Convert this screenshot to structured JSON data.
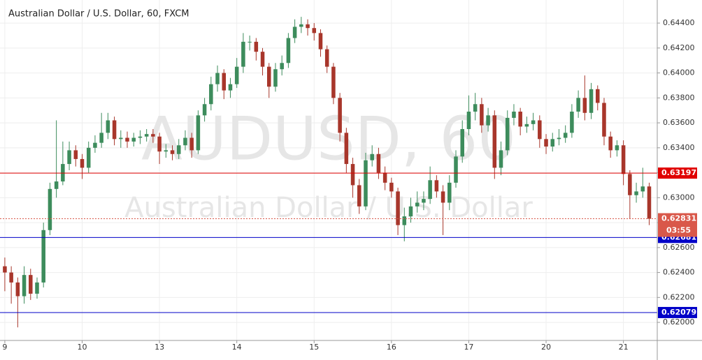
{
  "chart_data": {
    "type": "candlestick",
    "title": "Australian Dollar / U.S. Dollar, 60, FXCM",
    "watermark": [
      "AUDUSD, 60",
      "Australian Dollar / U.S. Dollar"
    ],
    "x": [
      0,
      2,
      4,
      6,
      8,
      10,
      12,
      14,
      16,
      18,
      20,
      22,
      24,
      26,
      28,
      30,
      32,
      34,
      36,
      38,
      40,
      42,
      44,
      46,
      48,
      50,
      52,
      54,
      56,
      58,
      60,
      62,
      64,
      66,
      68,
      70,
      72,
      74,
      76,
      78,
      80,
      82,
      84,
      86,
      88,
      90,
      92,
      94,
      96,
      98,
      100,
      102,
      104,
      106,
      108,
      110,
      112,
      114,
      116,
      118,
      120,
      122,
      124,
      126,
      128,
      130,
      132,
      134,
      136,
      138,
      140,
      142,
      144,
      146,
      148,
      150,
      152,
      154,
      156,
      158,
      160,
      162,
      164,
      166,
      168,
      170,
      172,
      174,
      176,
      178,
      180,
      182,
      184,
      186,
      188,
      190,
      192,
      194,
      196,
      198,
      200
    ],
    "open": [
      0.6245,
      0.624,
      0.6232,
      0.6221,
      0.6238,
      0.6223,
      0.6232,
      0.6274,
      0.6307,
      0.6313,
      0.6327,
      0.6338,
      0.6331,
      0.6324,
      0.634,
      0.6344,
      0.6352,
      0.6362,
      0.6347,
      0.6348,
      0.6345,
      0.6348,
      0.6349,
      0.6351,
      0.6349,
      0.6337,
      0.6338,
      0.6335,
      0.6342,
      0.6348,
      0.6338,
      0.6366,
      0.6375,
      0.6391,
      0.64,
      0.6386,
      0.6391,
      0.6405,
      0.6425,
      0.6425,
      0.6417,
      0.6405,
      0.6389,
      0.6403,
      0.6408,
      0.6428,
      0.6437,
      0.6439,
      0.6436,
      0.6432,
      0.6419,
      0.6405,
      0.638,
      0.6352,
      0.6327,
      0.631,
      0.6293,
      0.633,
      0.6335,
      0.632,
      0.6312,
      0.6305,
      0.6278,
      0.6285,
      0.6293,
      0.6296,
      0.6299,
      0.6314,
      0.6305,
      0.6296,
      0.6312,
      0.6333,
      0.6355,
      0.6369,
      0.6375,
      0.6358,
      0.6366,
      0.6324,
      0.6338,
      0.6364,
      0.6369,
      0.6357,
      0.6359,
      0.6362,
      0.6347,
      0.6341,
      0.6347,
      0.6348,
      0.6352,
      0.6369,
      0.638,
      0.6368,
      0.6387,
      0.6376,
      0.6349,
      0.6338,
      0.6342,
      0.6319,
      0.6302,
      0.6305,
      0.6309
    ],
    "high": [
      0.6252,
      0.6245,
      0.6236,
      0.6245,
      0.6243,
      0.6236,
      0.628,
      0.6312,
      0.6362,
      0.6345,
      0.6345,
      0.6342,
      0.6335,
      0.6345,
      0.635,
      0.6368,
      0.6368,
      0.6365,
      0.6354,
      0.6353,
      0.6352,
      0.6354,
      0.6355,
      0.6355,
      0.6352,
      0.6343,
      0.6342,
      0.6347,
      0.6354,
      0.6352,
      0.637,
      0.638,
      0.6397,
      0.6406,
      0.6403,
      0.6396,
      0.6412,
      0.6432,
      0.643,
      0.6428,
      0.642,
      0.6408,
      0.6408,
      0.6414,
      0.6432,
      0.6443,
      0.6445,
      0.6443,
      0.644,
      0.6435,
      0.6422,
      0.6408,
      0.6384,
      0.6356,
      0.6332,
      0.6315,
      0.6336,
      0.6342,
      0.634,
      0.6325,
      0.6316,
      0.6308,
      0.6292,
      0.63,
      0.6305,
      0.6305,
      0.6325,
      0.6318,
      0.631,
      0.6318,
      0.6338,
      0.6362,
      0.6382,
      0.6384,
      0.638,
      0.6372,
      0.637,
      0.6345,
      0.637,
      0.6375,
      0.6372,
      0.6365,
      0.6368,
      0.6366,
      0.6351,
      0.6352,
      0.6355,
      0.6358,
      0.6375,
      0.6386,
      0.6398,
      0.6392,
      0.639,
      0.638,
      0.6353,
      0.6346,
      0.6346,
      0.6322,
      0.6312,
      0.6324,
      0.6312
    ],
    "low": [
      0.6225,
      0.6215,
      0.6196,
      0.6215,
      0.6218,
      0.6219,
      0.6228,
      0.627,
      0.63,
      0.631,
      0.6322,
      0.6325,
      0.6315,
      0.632,
      0.6336,
      0.634,
      0.6347,
      0.6342,
      0.634,
      0.634,
      0.6341,
      0.6343,
      0.6345,
      0.6344,
      0.6327,
      0.6332,
      0.633,
      0.6331,
      0.6338,
      0.6332,
      0.6335,
      0.6361,
      0.637,
      0.6385,
      0.6379,
      0.638,
      0.6388,
      0.64,
      0.6418,
      0.641,
      0.6398,
      0.638,
      0.6385,
      0.6398,
      0.6404,
      0.6424,
      0.6432,
      0.643,
      0.6426,
      0.6413,
      0.64,
      0.6375,
      0.6345,
      0.632,
      0.63,
      0.6287,
      0.629,
      0.6325,
      0.6315,
      0.6306,
      0.63,
      0.627,
      0.6265,
      0.628,
      0.6288,
      0.629,
      0.6295,
      0.63,
      0.627,
      0.629,
      0.6308,
      0.6328,
      0.635,
      0.6362,
      0.6352,
      0.6353,
      0.6315,
      0.6318,
      0.6334,
      0.6358,
      0.635,
      0.6352,
      0.6354,
      0.634,
      0.6335,
      0.6337,
      0.6342,
      0.6344,
      0.6348,
      0.6364,
      0.6362,
      0.6363,
      0.637,
      0.6342,
      0.6332,
      0.6333,
      0.631,
      0.6283,
      0.6296,
      0.63,
      0.6278
    ],
    "close": [
      0.624,
      0.6232,
      0.6221,
      0.6238,
      0.6223,
      0.6232,
      0.6274,
      0.6307,
      0.6313,
      0.6327,
      0.6338,
      0.6331,
      0.6324,
      0.634,
      0.6344,
      0.6352,
      0.6362,
      0.6347,
      0.6348,
      0.6345,
      0.6348,
      0.6349,
      0.6351,
      0.6349,
      0.6337,
      0.6338,
      0.6335,
      0.6342,
      0.6348,
      0.6338,
      0.6366,
      0.6375,
      0.6391,
      0.64,
      0.6386,
      0.6391,
      0.6405,
      0.6425,
      0.6425,
      0.6417,
      0.6405,
      0.6389,
      0.6403,
      0.6408,
      0.6428,
      0.6437,
      0.6439,
      0.6436,
      0.6432,
      0.6419,
      0.6405,
      0.638,
      0.6352,
      0.6327,
      0.631,
      0.6293,
      0.633,
      0.6335,
      0.632,
      0.6312,
      0.6305,
      0.6278,
      0.6285,
      0.6293,
      0.6296,
      0.6299,
      0.6314,
      0.6305,
      0.6296,
      0.6312,
      0.6333,
      0.6355,
      0.6369,
      0.6375,
      0.6358,
      0.6366,
      0.6324,
      0.6338,
      0.6364,
      0.6369,
      0.6357,
      0.6359,
      0.6362,
      0.6347,
      0.6341,
      0.6347,
      0.6348,
      0.6352,
      0.6369,
      0.638,
      0.6368,
      0.6387,
      0.6376,
      0.6349,
      0.6338,
      0.6342,
      0.6319,
      0.6302,
      0.6305,
      0.6309,
      0.62831
    ],
    "up_color": "#3d8c5c",
    "down_color": "#a8362b",
    "last_color": "#d9584a",
    "countdown": "03:55",
    "xlim": [
      -1.5,
      202.5
    ],
    "ylim": [
      0.61855,
      0.64585
    ],
    "xticks": [
      {
        "value": 0,
        "label": "9"
      },
      {
        "value": 24,
        "label": "10"
      },
      {
        "value": 48,
        "label": "13"
      },
      {
        "value": 72,
        "label": "14"
      },
      {
        "value": 96,
        "label": "15"
      },
      {
        "value": 120,
        "label": "16"
      },
      {
        "value": 144,
        "label": "17"
      },
      {
        "value": 168,
        "label": "20"
      },
      {
        "value": 192,
        "label": "21"
      }
    ],
    "yticks": [
      {
        "value": 0.644,
        "label": "0.64400"
      },
      {
        "value": 0.642,
        "label": "0.64200"
      },
      {
        "value": 0.64,
        "label": "0.64000"
      },
      {
        "value": 0.638,
        "label": "0.63800"
      },
      {
        "value": 0.636,
        "label": "0.63600"
      },
      {
        "value": 0.634,
        "label": "0.63400"
      },
      {
        "value": 0.632,
        "label": "0.63200"
      },
      {
        "value": 0.63,
        "label": "0.63000"
      },
      {
        "value": 0.628,
        "label": "0.62800"
      },
      {
        "value": 0.626,
        "label": "0.62600"
      },
      {
        "value": 0.624,
        "label": "0.62400"
      },
      {
        "value": 0.622,
        "label": "0.62200"
      },
      {
        "value": 0.62,
        "label": "0.62000"
      }
    ],
    "grid": true,
    "levels": [
      {
        "value": 0.63197,
        "color": "#e00000"
      },
      {
        "value": 0.62681,
        "color": "#0000c8"
      },
      {
        "value": 0.62079,
        "color": "#0000c8"
      }
    ]
  }
}
